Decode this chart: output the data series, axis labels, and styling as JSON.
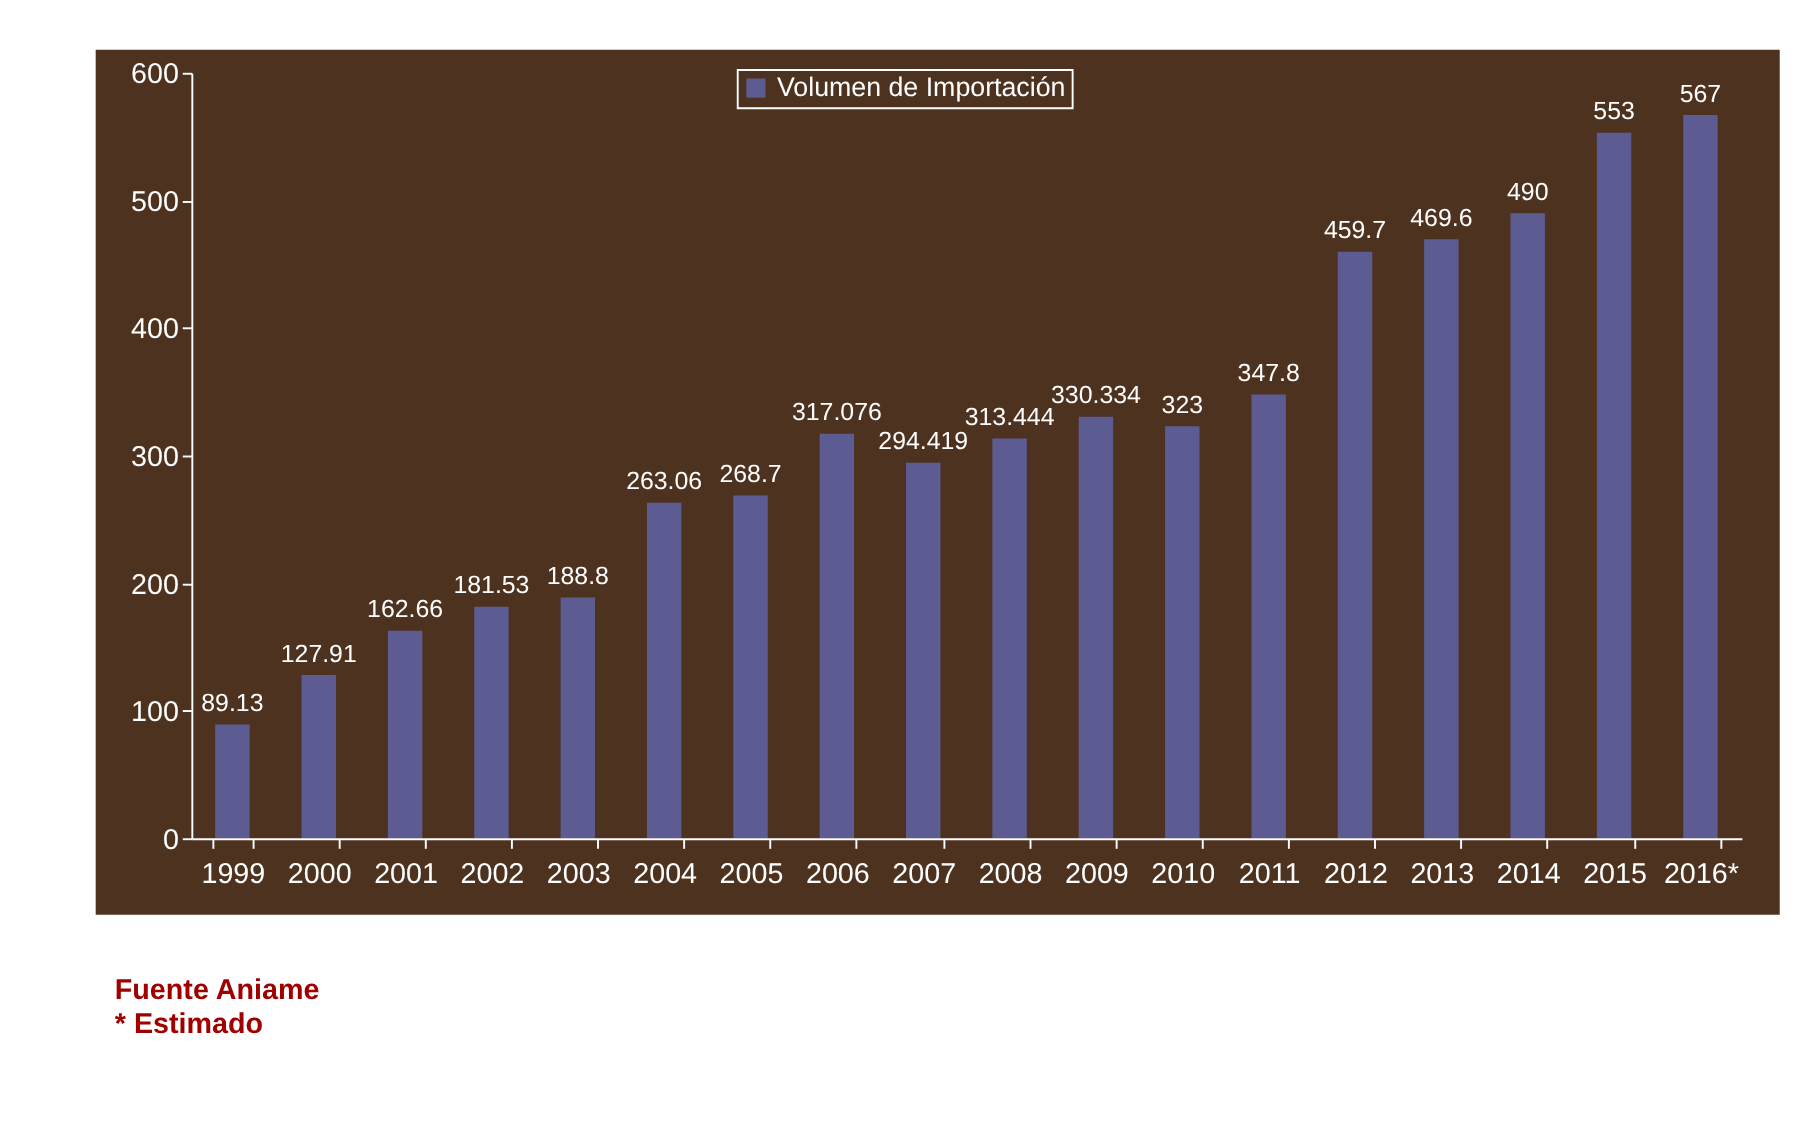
{
  "chart_data": {
    "type": "bar",
    "categories": [
      "1999",
      "2000",
      "2001",
      "2002",
      "2003",
      "2004",
      "2005",
      "2006",
      "2007",
      "2008",
      "2009",
      "2010",
      "2011",
      "2012",
      "2013",
      "2014",
      "2015",
      "2016*"
    ],
    "series": [
      {
        "name": "Volumen de Importación",
        "color": "#5c5c92",
        "values": [
          89.13,
          127.91,
          162.66,
          181.53,
          188.8,
          263.06,
          268.7,
          317.076,
          294.419,
          313.444,
          330.334,
          323,
          347.8,
          459.7,
          469.6,
          490,
          553,
          567
        ]
      }
    ],
    "ylim": [
      0,
      600
    ],
    "yticks": [
      0,
      100,
      200,
      300,
      400,
      500,
      600
    ],
    "data_labels": true,
    "legend": "top",
    "grid": false,
    "annotations": [
      "Fuente Aniame",
      "* Estimado"
    ]
  }
}
